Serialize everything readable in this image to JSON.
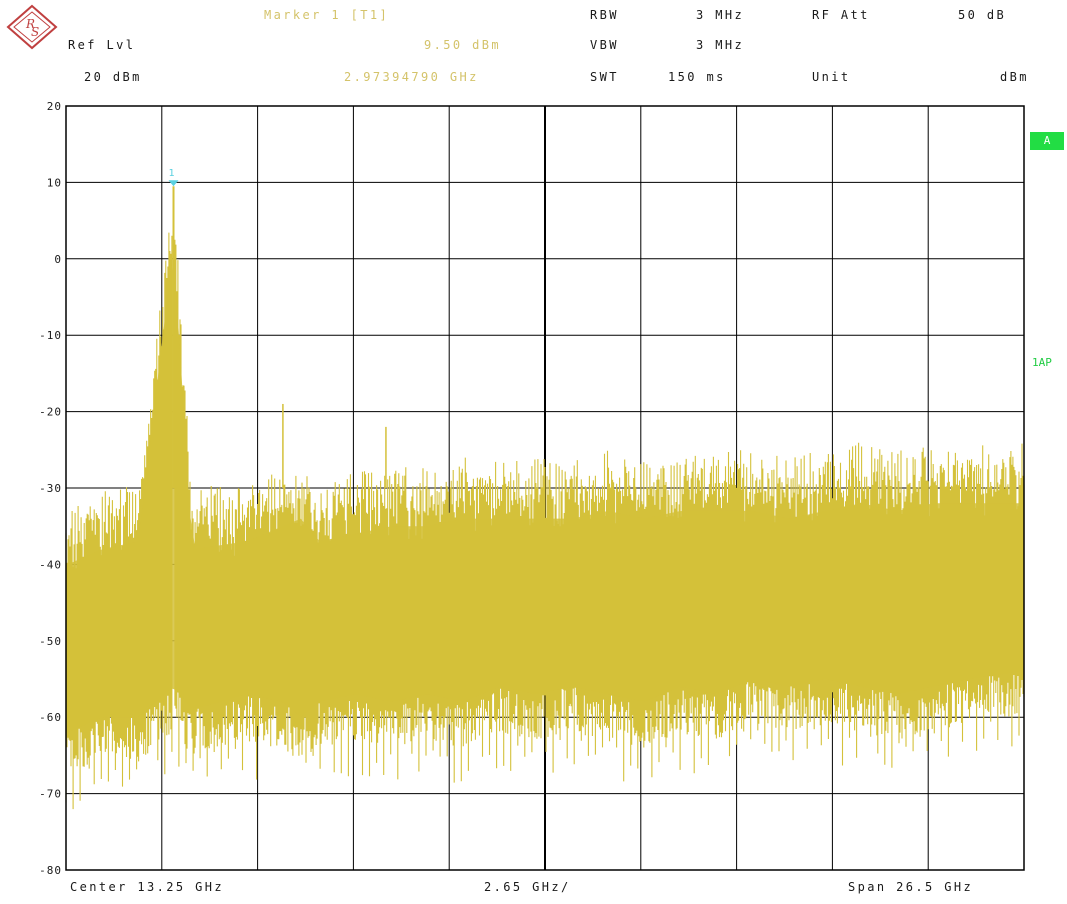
{
  "header": {
    "marker_title": "Marker 1 [T1]",
    "ref_lvl_label": "Ref Lvl",
    "ref_lvl_value": "20 dBm",
    "marker_level": "9.50 dBm",
    "marker_freq": "2.97394790 GHz",
    "rbw_label": "RBW",
    "rbw_value": "3 MHz",
    "vbw_label": "VBW",
    "vbw_value": "3 MHz",
    "swt_label": "SWT",
    "swt_value": "150 ms",
    "rfatt_label": "RF Att",
    "rfatt_value": "50 dB",
    "unit_label": "Unit",
    "unit_value": "dBm"
  },
  "side": {
    "trace_badge": "A",
    "detector_label": "1AP"
  },
  "footer": {
    "center": "Center 13.25 GHz",
    "per_div": "2.65 GHz/",
    "span": "Span 26.5 GHz"
  },
  "colors": {
    "trace": "#d4c13a",
    "grid": "#000000",
    "marker": "#5ad0e0",
    "badge": "#22dd44",
    "marker_text": "#d4c36a",
    "detector_text": "#22cc44"
  },
  "icons": {
    "logo": "rohde-schwarz-logo-icon"
  },
  "chart_data": {
    "type": "line",
    "title": "",
    "xlabel": "",
    "ylabel": "",
    "x_unit": "GHz",
    "y_unit": "dBm",
    "xlim": [
      0,
      26.5
    ],
    "ylim": [
      -80,
      20
    ],
    "y_ticks": [
      20,
      10,
      0,
      -10,
      -20,
      -30,
      -40,
      -50,
      -60,
      -70,
      -80
    ],
    "grid": true,
    "series": [
      {
        "points_x": [
          0.05,
          1.0,
          2.0,
          2.97,
          3.5,
          5.0,
          6.0,
          6.5,
          7.0,
          8.0,
          9.0,
          10.0,
          11.0,
          12.0,
          13.0,
          14.0,
          15.0,
          16.0,
          17.0,
          18.0,
          19.0,
          20.0,
          21.0,
          22.0,
          23.0,
          24.0,
          25.0,
          26.4
        ],
        "peak_dbm": [
          -32,
          -30,
          -29,
          9.5,
          -30,
          -29,
          -27,
          -26,
          -29,
          -28,
          -27,
          -27,
          -26,
          -26,
          -26,
          -26,
          -25,
          -26,
          -25,
          -25,
          -25,
          -26,
          -25,
          -24,
          -25,
          -24,
          -24,
          -24
        ],
        "floor_dbm": [
          -68,
          -66,
          -66,
          -62,
          -65,
          -63,
          -64,
          -66,
          -64,
          -63,
          -64,
          -63,
          -64,
          -62,
          -63,
          -62,
          -63,
          -64,
          -62,
          -63,
          -61,
          -62,
          -61,
          -62,
          -63,
          -62,
          -61,
          -60
        ],
        "spurs_x": [
          6.0,
          8.85
        ],
        "spurs_dbm": [
          -19,
          -22
        ]
      }
    ],
    "marker": {
      "label": "1",
      "x": 2.9739479,
      "y": 9.5
    }
  }
}
